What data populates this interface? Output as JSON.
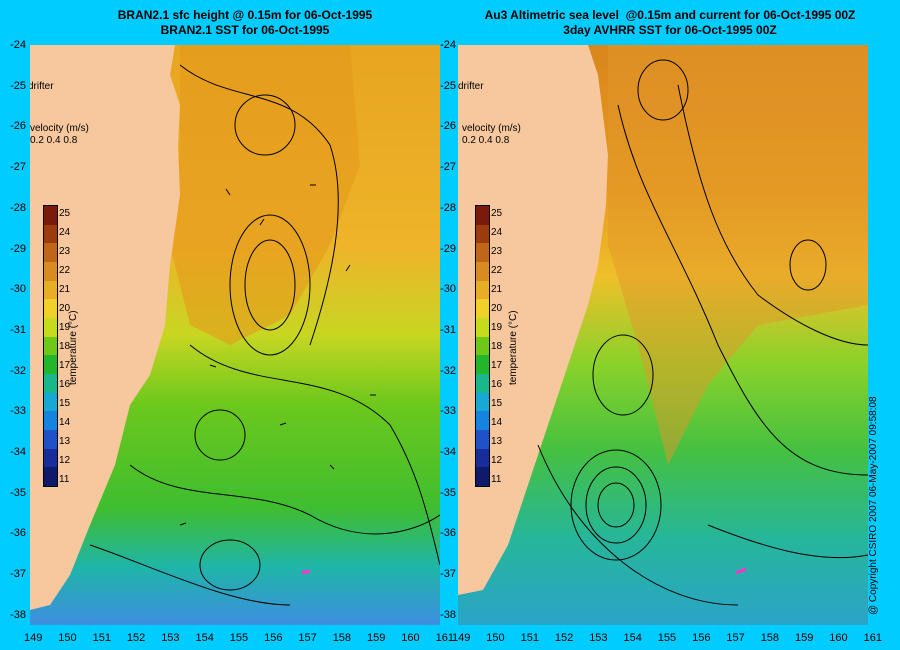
{
  "left_panel": {
    "title_line1": "BRAN2.1 sfc height @ 0.15m for 06-Oct-1995",
    "title_line2": "BRAN2.1 SST for 06-Oct-1995"
  },
  "right_panel": {
    "title_line1": "Au3 Altimetric sea level  @0.15m and current for 06-Oct-1995 00Z",
    "title_line2": "3day AVHRR SST for 06-Oct-1995 00Z"
  },
  "drifter_label": "drifter",
  "velocity_legend": {
    "title": "velocity (m/s)",
    "values": "0.2 0.4 0.8"
  },
  "colorbar": {
    "label": "temperature (°C)",
    "ticks": [
      "25",
      "24",
      "23",
      "22",
      "21",
      "20",
      "19",
      "18",
      "17",
      "16",
      "15",
      "14",
      "13",
      "12",
      "11"
    ],
    "colors": [
      "#7a1a0a",
      "#9c3b0c",
      "#c0661a",
      "#d98a20",
      "#e7ae25",
      "#f2d02a",
      "#c4dc1c",
      "#6dc81a",
      "#23b52a",
      "#19b88a",
      "#17a8d4",
      "#1584e0",
      "#1f52c8",
      "#182d9a",
      "#0f1a6a"
    ]
  },
  "lat_ticks": [
    "-24",
    "-25",
    "-26",
    "-27",
    "-28",
    "-29",
    "-30",
    "-31",
    "-32",
    "-33",
    "-34",
    "-35",
    "-36",
    "-37",
    "-38"
  ],
  "lon_ticks": [
    "149",
    "150",
    "151",
    "152",
    "153",
    "154",
    "155",
    "156",
    "157",
    "158",
    "159",
    "160",
    "161"
  ],
  "copyright": "@ Copyright CSIRO 2007  06-May-2007 09:58:08",
  "colors": {
    "land": "#f7c89e",
    "background": "#00ccff",
    "drifter": "#ff33cc"
  }
}
